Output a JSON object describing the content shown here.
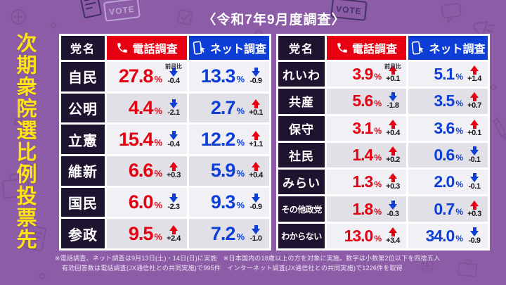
{
  "title_vertical": "次期衆院選比例投票先",
  "survey_period": "〈令和7年9月度調査〉",
  "columns": {
    "party": "党名",
    "phone": "電話調査",
    "net": "ネット調査"
  },
  "mom_label": "前月比",
  "percent_sign": "%",
  "decor": {
    "vote_label": "VOTE"
  },
  "tables": [
    {
      "rows": [
        {
          "party": "自民",
          "phone": {
            "value": "27.8",
            "dir": "down",
            "change": "-0.4"
          },
          "net": {
            "value": "13.3",
            "dir": "down",
            "change": "-0.9"
          }
        },
        {
          "party": "公明",
          "phone": {
            "value": "4.4",
            "dir": "down",
            "change": "-2.1"
          },
          "net": {
            "value": "2.7",
            "dir": "up",
            "change": "+0.1"
          }
        },
        {
          "party": "立憲",
          "phone": {
            "value": "15.4",
            "dir": "down",
            "change": "-0.4"
          },
          "net": {
            "value": "12.2",
            "dir": "up",
            "change": "+1.1"
          }
        },
        {
          "party": "維新",
          "phone": {
            "value": "6.6",
            "dir": "up",
            "change": "+0.3"
          },
          "net": {
            "value": "5.9",
            "dir": "up",
            "change": "+0.4"
          }
        },
        {
          "party": "国民",
          "phone": {
            "value": "6.0",
            "dir": "down",
            "change": "-2.3"
          },
          "net": {
            "value": "9.3",
            "dir": "down",
            "change": "-0.9"
          }
        },
        {
          "party": "参政",
          "phone": {
            "value": "9.5",
            "dir": "up",
            "change": "+2.4"
          },
          "net": {
            "value": "7.2",
            "dir": "down",
            "change": "-1.0"
          }
        }
      ]
    },
    {
      "rows": [
        {
          "party": "れいわ",
          "phone": {
            "value": "3.9",
            "dir": "up",
            "change": "+0.1"
          },
          "net": {
            "value": "5.1",
            "dir": "up",
            "change": "+1.4"
          }
        },
        {
          "party": "共産",
          "phone": {
            "value": "5.6",
            "dir": "down",
            "change": "-1.8"
          },
          "net": {
            "value": "3.5",
            "dir": "up",
            "change": "+0.7"
          }
        },
        {
          "party": "保守",
          "phone": {
            "value": "3.1",
            "dir": "up",
            "change": "+0.4"
          },
          "net": {
            "value": "3.6",
            "dir": "up",
            "change": "+0.1"
          }
        },
        {
          "party": "社民",
          "phone": {
            "value": "1.4",
            "dir": "up",
            "change": "+0.2"
          },
          "net": {
            "value": "0.6",
            "dir": "down",
            "change": "-0.1"
          }
        },
        {
          "party": "みらい",
          "phone": {
            "value": "1.3",
            "dir": "up",
            "change": "+0.3"
          },
          "net": {
            "value": "2.0",
            "dir": "down",
            "change": "-0.1"
          }
        },
        {
          "party": "その他政党",
          "phone": {
            "value": "1.8",
            "dir": "down",
            "change": "-0.3"
          },
          "net": {
            "value": "0.7",
            "dir": "up",
            "change": "+0.3"
          }
        },
        {
          "party": "わからない",
          "phone": {
            "value": "13.0",
            "dir": "up",
            "change": "+3.4"
          },
          "net": {
            "value": "34.0",
            "dir": "down",
            "change": "-0.9"
          }
        }
      ]
    }
  ],
  "footnotes": [
    "※電話調査、ネット調査は9月13日(土)・14日(日)に実施　※日本国内の18歳以上の方を対象に実施。数字は小数第2位以下を四捨五入",
    "有効回答数は電話調査(JX通信社との共同実施)で995件　インターネット調査(JX通信社との共同実施)で1226件を取得"
  ],
  "colors": {
    "background_purple": "#8d5ca6",
    "title_yellow": "#ffe415",
    "phone_red": "#e60012",
    "net_blue": "#0d3fd6",
    "cell_dark": "#1e1430",
    "row_light": "#f1f0f4",
    "row_dark": "#e1e0e6"
  },
  "chart_data": {
    "type": "table",
    "title": "次期衆院選比例投票先",
    "subtitle": "〈令和7年9月度調査〉",
    "units": "%",
    "columns": [
      "党名",
      "電話調査(%)",
      "電話調査 前月比",
      "ネット調査(%)",
      "ネット調査 前月比"
    ],
    "rows": [
      [
        "自民",
        27.8,
        -0.4,
        13.3,
        -0.9
      ],
      [
        "公明",
        4.4,
        -2.1,
        2.7,
        0.1
      ],
      [
        "立憲",
        15.4,
        -0.4,
        12.2,
        1.1
      ],
      [
        "維新",
        6.6,
        0.3,
        5.9,
        0.4
      ],
      [
        "国民",
        6.0,
        -2.3,
        9.3,
        -0.9
      ],
      [
        "参政",
        9.5,
        2.4,
        7.2,
        -1.0
      ],
      [
        "れいわ",
        3.9,
        0.1,
        5.1,
        1.4
      ],
      [
        "共産",
        5.6,
        -1.8,
        3.5,
        0.7
      ],
      [
        "保守",
        3.1,
        0.4,
        3.6,
        0.1
      ],
      [
        "社民",
        1.4,
        0.2,
        0.6,
        -0.1
      ],
      [
        "みらい",
        1.3,
        0.3,
        2.0,
        -0.1
      ],
      [
        "その他政党",
        1.8,
        -0.3,
        0.7,
        0.3
      ],
      [
        "わからない",
        13.0,
        3.4,
        34.0,
        -0.9
      ]
    ]
  }
}
